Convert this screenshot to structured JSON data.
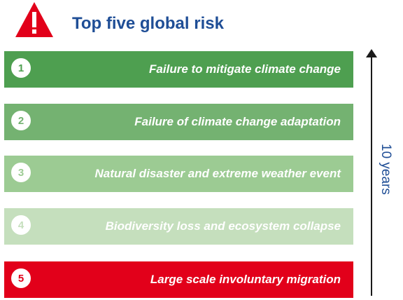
{
  "header": {
    "icon": "warning-triangle-icon",
    "title": "Top five global risk"
  },
  "risks": [
    {
      "number": "1",
      "label": "Failure to mitigate climate change",
      "bar_color": "#4e9f50",
      "text_color": "#ffffff",
      "number_color": "#4e9f50"
    },
    {
      "number": "2",
      "label": "Failure of climate change adaptation",
      "bar_color": "#74b271",
      "text_color": "#ffffff",
      "number_color": "#74b271"
    },
    {
      "number": "3",
      "label": "Natural disaster and extreme weather event",
      "bar_color": "#9ccb93",
      "text_color": "#ffffff",
      "number_color": "#9ccb93"
    },
    {
      "number": "4",
      "label": "Biodiversity loss and ecosystem collapse",
      "bar_color": "#c5dfbd",
      "text_color": "#ffffff",
      "number_color": "#c5dfbd"
    },
    {
      "number": "5",
      "label": "Large scale involuntary migration",
      "bar_color": "#e2001a",
      "text_color": "#ffffff",
      "number_color": "#e2001a"
    }
  ],
  "timeline": {
    "label": "10 years"
  },
  "colors": {
    "title": "#1f4e96",
    "warning": "#e2001a",
    "axis": "#1a1a1a"
  }
}
